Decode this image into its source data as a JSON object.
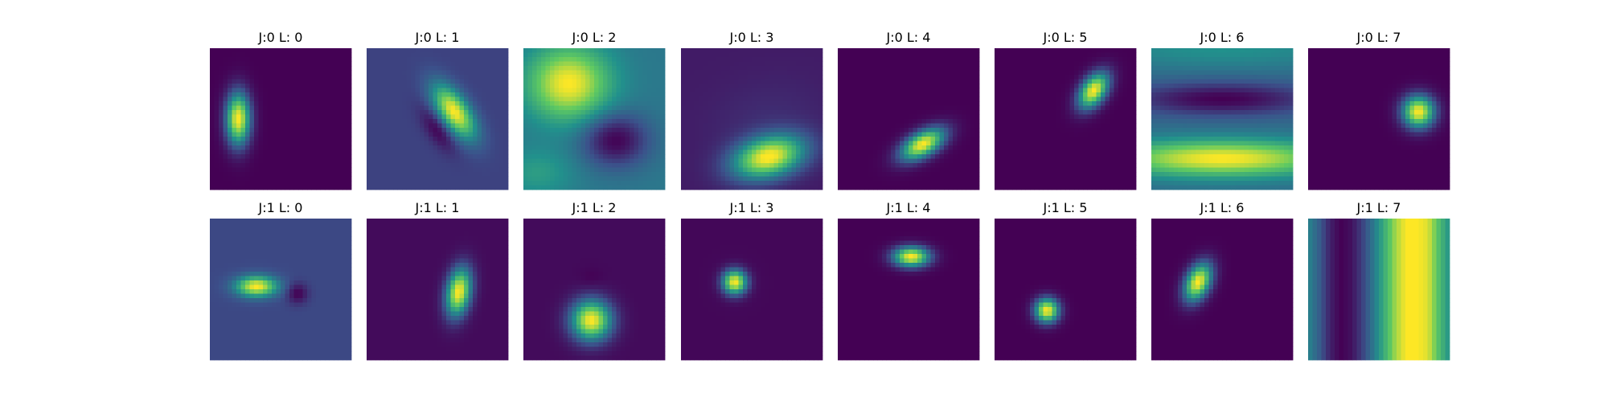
{
  "figure": {
    "colormap": "viridis",
    "colormap_stops": [
      "#440154",
      "#3b528b",
      "#21918c",
      "#5ec962",
      "#fde725"
    ]
  },
  "chart_data": [
    {
      "type": "heatmap",
      "title": "J:0 L: 0",
      "background": 0.0,
      "features": [
        {
          "cx": 0.2,
          "cy": 0.5,
          "sx": 0.06,
          "sy": 0.13,
          "theta": 0,
          "amp": 1.0
        }
      ]
    },
    {
      "type": "heatmap",
      "title": "J:0 L: 1",
      "background": 0.2,
      "features": [
        {
          "cx": 0.62,
          "cy": 0.45,
          "sx": 0.07,
          "sy": 0.15,
          "theta": -35,
          "amp": 0.8
        },
        {
          "cx": 0.5,
          "cy": 0.58,
          "sx": 0.05,
          "sy": 0.12,
          "theta": -35,
          "amp": -0.2
        }
      ]
    },
    {
      "type": "heatmap",
      "title": "J:0 L: 2",
      "background": 0.4,
      "features": [
        {
          "cx": 0.32,
          "cy": 0.25,
          "sx": 0.2,
          "sy": 0.18,
          "theta": 0,
          "amp": 0.6
        },
        {
          "cx": 0.65,
          "cy": 0.65,
          "sx": 0.16,
          "sy": 0.13,
          "theta": 0,
          "amp": -0.4
        },
        {
          "cx": 0.1,
          "cy": 0.88,
          "sx": 0.18,
          "sy": 0.12,
          "theta": 0,
          "amp": 0.15
        }
      ]
    },
    {
      "type": "heatmap",
      "title": "J:0 L: 3",
      "background": 0.08,
      "features": [
        {
          "cx": 0.62,
          "cy": 0.77,
          "sx": 0.18,
          "sy": 0.1,
          "theta": -15,
          "amp": 0.92
        },
        {
          "cx": 0.6,
          "cy": 0.5,
          "sx": 0.3,
          "sy": 0.2,
          "theta": -15,
          "amp": 0.05
        }
      ]
    },
    {
      "type": "heatmap",
      "title": "J:0 L: 4",
      "background": 0.0,
      "features": [
        {
          "cx": 0.6,
          "cy": 0.68,
          "sx": 0.12,
          "sy": 0.06,
          "theta": -30,
          "amp": 1.0
        }
      ]
    },
    {
      "type": "heatmap",
      "title": "J:0 L: 5",
      "background": 0.0,
      "features": [
        {
          "cx": 0.7,
          "cy": 0.3,
          "sx": 0.06,
          "sy": 0.1,
          "theta": 35,
          "amp": 1.0
        }
      ]
    },
    {
      "type": "heatmap",
      "title": "J:0 L: 6",
      "background": 0.35,
      "features": [
        {
          "cx": 0.5,
          "cy": 0.78,
          "sx": 0.55,
          "sy": 0.09,
          "theta": 0,
          "amp": 0.65
        },
        {
          "cx": 0.5,
          "cy": 0.36,
          "sx": 0.45,
          "sy": 0.08,
          "theta": 0,
          "amp": -0.35
        },
        {
          "cx": 0.5,
          "cy": 0.0,
          "sx": 0.7,
          "sy": 0.1,
          "theta": 0,
          "amp": 0.15
        }
      ]
    },
    {
      "type": "heatmap",
      "title": "J:0 L: 7",
      "background": 0.0,
      "features": [
        {
          "cx": 0.78,
          "cy": 0.45,
          "sx": 0.08,
          "sy": 0.08,
          "theta": 0,
          "amp": 1.0
        }
      ]
    },
    {
      "type": "heatmap",
      "title": "J:1 L: 0",
      "background": 0.22,
      "features": [
        {
          "cx": 0.33,
          "cy": 0.48,
          "sx": 0.1,
          "sy": 0.05,
          "theta": 0,
          "amp": 0.78
        },
        {
          "cx": 0.62,
          "cy": 0.53,
          "sx": 0.05,
          "sy": 0.05,
          "theta": 0,
          "amp": -0.22
        }
      ]
    },
    {
      "type": "heatmap",
      "title": "J:1 L: 1",
      "background": 0.03,
      "features": [
        {
          "cx": 0.65,
          "cy": 0.52,
          "sx": 0.06,
          "sy": 0.12,
          "theta": 10,
          "amp": 0.97
        }
      ]
    },
    {
      "type": "heatmap",
      "title": "J:1 L: 2",
      "background": 0.03,
      "features": [
        {
          "cx": 0.48,
          "cy": 0.72,
          "sx": 0.1,
          "sy": 0.1,
          "theta": 0,
          "amp": 0.97
        },
        {
          "cx": 0.48,
          "cy": 0.42,
          "sx": 0.06,
          "sy": 0.05,
          "theta": 0,
          "amp": -0.03
        }
      ]
    },
    {
      "type": "heatmap",
      "title": "J:1 L: 3",
      "background": 0.02,
      "features": [
        {
          "cx": 0.38,
          "cy": 0.45,
          "sx": 0.06,
          "sy": 0.06,
          "theta": 0,
          "amp": 0.98
        }
      ]
    },
    {
      "type": "heatmap",
      "title": "J:1 L: 4",
      "background": 0.0,
      "features": [
        {
          "cx": 0.52,
          "cy": 0.27,
          "sx": 0.09,
          "sy": 0.05,
          "theta": 0,
          "amp": 1.0
        }
      ]
    },
    {
      "type": "heatmap",
      "title": "J:1 L: 5",
      "background": 0.0,
      "features": [
        {
          "cx": 0.37,
          "cy": 0.65,
          "sx": 0.06,
          "sy": 0.06,
          "theta": 0,
          "amp": 1.0
        }
      ]
    },
    {
      "type": "heatmap",
      "title": "J:1 L: 6",
      "background": 0.0,
      "features": [
        {
          "cx": 0.33,
          "cy": 0.45,
          "sx": 0.06,
          "sy": 0.1,
          "theta": 25,
          "amp": 1.0
        }
      ]
    },
    {
      "type": "heatmap",
      "title": "J:1 L: 7",
      "background": "stripes",
      "columns": [
        0.45,
        0.3,
        0.1,
        0.0,
        0.05,
        0.2,
        0.4,
        0.62,
        0.85,
        1.0,
        1.0,
        0.95,
        0.7,
        0.5
      ]
    }
  ]
}
